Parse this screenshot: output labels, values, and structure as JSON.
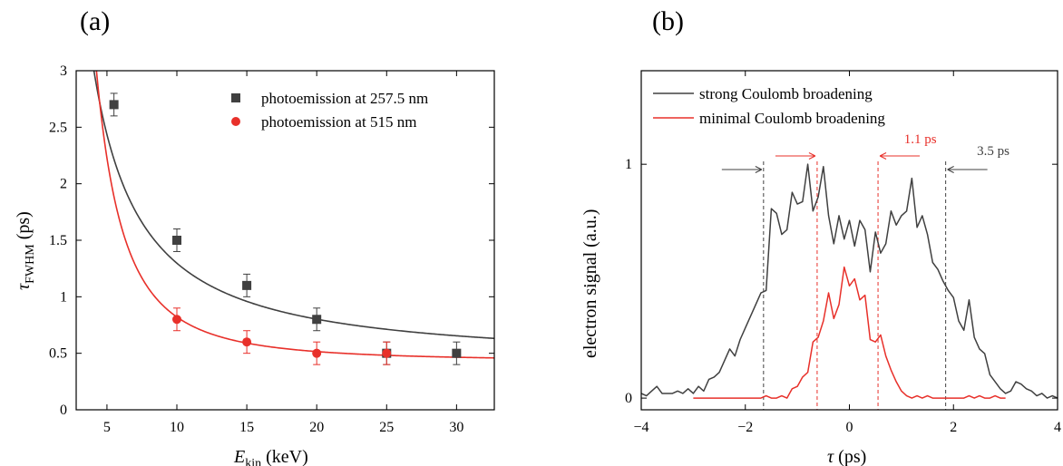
{
  "chart_data": [
    {
      "panel_label": "(a)",
      "type": "scatter",
      "xlabel": "E_kin (keV)",
      "xlabel_main": "E",
      "xlabel_sub": "kin",
      "xlabel_unit": " (keV)",
      "ylabel": "τ_FWHM (ps)",
      "ylabel_main": "τ",
      "ylabel_sub": "FWHM",
      "ylabel_unit": " (ps)",
      "xlim": [
        2.8,
        32.7
      ],
      "ylim": [
        0,
        3
      ],
      "xticks": [
        5,
        10,
        15,
        20,
        25,
        30
      ],
      "yticks": [
        0,
        0.5,
        1,
        1.5,
        2,
        2.5,
        3
      ],
      "grid": false,
      "legend_position": "top-right",
      "series": [
        {
          "name": "photoemission at 257.5 nm",
          "color": "#404040",
          "marker": "square",
          "x": [
            5.5,
            10,
            15,
            20,
            25,
            30
          ],
          "y": [
            2.7,
            1.5,
            1.1,
            0.8,
            0.5,
            0.5
          ],
          "yerr": [
            0.1,
            0.1,
            0.1,
            0.1,
            0.1,
            0.1
          ],
          "fit": {
            "a": 13.9,
            "p": 1.2,
            "c": 0.42
          }
        },
        {
          "name": "photoemission at 515 nm",
          "color": "#e8302a",
          "marker": "circle",
          "x": [
            10,
            15,
            20,
            25
          ],
          "y": [
            0.8,
            0.6,
            0.5,
            0.5
          ],
          "yerr": [
            0.1,
            0.1,
            0.1,
            0.1
          ],
          "fit": {
            "a": 62,
            "p": 2.2,
            "c": 0.43
          }
        }
      ]
    },
    {
      "panel_label": "(b)",
      "type": "line",
      "xlabel": "τ (ps)",
      "xlabel_main": "τ",
      "xlabel_unit": " (ps)",
      "ylabel": "electron signal (a.u.)",
      "xlim": [
        -4,
        4
      ],
      "ylim": [
        -0.05,
        1.4
      ],
      "xticks": [
        -4,
        -2,
        0,
        2,
        4
      ],
      "yticks": [
        0,
        1
      ],
      "grid": false,
      "legend_position": "top-left",
      "series": [
        {
          "name": "strong Coulomb broadening",
          "color": "#404040",
          "x": [
            -4.0,
            -3.9,
            -3.8,
            -3.7,
            -3.6,
            -3.5,
            -3.4,
            -3.3,
            -3.2,
            -3.1,
            -3.0,
            -2.9,
            -2.8,
            -2.7,
            -2.6,
            -2.5,
            -2.4,
            -2.3,
            -2.2,
            -2.1,
            -2.0,
            -1.9,
            -1.8,
            -1.7,
            -1.6,
            -1.5,
            -1.4,
            -1.3,
            -1.2,
            -1.1,
            -1.0,
            -0.9,
            -0.8,
            -0.7,
            -0.6,
            -0.5,
            -0.4,
            -0.3,
            -0.2,
            -0.1,
            0.0,
            0.1,
            0.2,
            0.3,
            0.4,
            0.5,
            0.6,
            0.7,
            0.8,
            0.9,
            1.0,
            1.1,
            1.2,
            1.3,
            1.4,
            1.5,
            1.6,
            1.7,
            1.8,
            1.9,
            2.0,
            2.1,
            2.2,
            2.3,
            2.4,
            2.5,
            2.6,
            2.7,
            2.8,
            2.9,
            3.0,
            3.1,
            3.2,
            3.3,
            3.4,
            3.5,
            3.6,
            3.7,
            3.8,
            3.9,
            4.0
          ],
          "y": [
            0.02,
            0.01,
            0.03,
            0.05,
            0.02,
            0.02,
            0.02,
            0.03,
            0.02,
            0.04,
            0.02,
            0.05,
            0.03,
            0.08,
            0.09,
            0.11,
            0.16,
            0.21,
            0.18,
            0.25,
            0.3,
            0.35,
            0.4,
            0.45,
            0.46,
            0.81,
            0.79,
            0.7,
            0.72,
            0.88,
            0.83,
            0.84,
            1.0,
            0.8,
            0.86,
            0.99,
            0.78,
            0.66,
            0.78,
            0.68,
            0.76,
            0.65,
            0.76,
            0.72,
            0.54,
            0.71,
            0.62,
            0.66,
            0.8,
            0.74,
            0.78,
            0.8,
            0.94,
            0.73,
            0.78,
            0.7,
            0.58,
            0.55,
            0.5,
            0.46,
            0.43,
            0.33,
            0.29,
            0.42,
            0.26,
            0.21,
            0.19,
            0.1,
            0.07,
            0.04,
            0.02,
            0.03,
            0.07,
            0.06,
            0.04,
            0.03,
            0.01,
            0.02,
            0.0,
            0.01,
            0.0
          ]
        },
        {
          "name": "minimal Coulomb broadening",
          "color": "#e8302a",
          "x": [
            -3.0,
            -2.9,
            -2.8,
            -2.7,
            -2.6,
            -2.5,
            -2.4,
            -2.3,
            -2.2,
            -2.1,
            -2.0,
            -1.9,
            -1.8,
            -1.7,
            -1.6,
            -1.5,
            -1.4,
            -1.3,
            -1.2,
            -1.1,
            -1.0,
            -0.9,
            -0.8,
            -0.7,
            -0.6,
            -0.5,
            -0.4,
            -0.3,
            -0.2,
            -0.1,
            0.0,
            0.1,
            0.2,
            0.3,
            0.4,
            0.5,
            0.6,
            0.7,
            0.8,
            0.9,
            1.0,
            1.1,
            1.2,
            1.3,
            1.4,
            1.5,
            1.6,
            1.7,
            1.8,
            1.9,
            2.0,
            2.1,
            2.2,
            2.3,
            2.4,
            2.5,
            2.6,
            2.7,
            2.8,
            2.9,
            3.0
          ],
          "y": [
            0.0,
            0.0,
            0.0,
            0.0,
            0.0,
            0.0,
            0.0,
            0.0,
            0.0,
            0.0,
            0.0,
            0.0,
            0.0,
            0.0,
            0.01,
            0.0,
            0.0,
            0.01,
            0.0,
            0.04,
            0.05,
            0.09,
            0.11,
            0.24,
            0.26,
            0.33,
            0.45,
            0.34,
            0.4,
            0.56,
            0.48,
            0.51,
            0.42,
            0.44,
            0.25,
            0.24,
            0.27,
            0.18,
            0.12,
            0.07,
            0.03,
            0.01,
            0.0,
            0.01,
            0.0,
            0.01,
            0.0,
            0.0,
            0.0,
            0.0,
            0.0,
            0.0,
            0.0,
            0.01,
            0.0,
            0.01,
            0.0,
            0.0,
            0.01,
            0.0,
            0.0
          ]
        }
      ],
      "vlines": [
        {
          "x": -1.65,
          "color": "#404040"
        },
        {
          "x": 1.85,
          "color": "#404040"
        },
        {
          "x": -0.62,
          "color": "#e8302a"
        },
        {
          "x": 0.55,
          "color": "#e8302a"
        }
      ],
      "annotations": [
        {
          "text": "1.1 ps",
          "color": "#e8302a",
          "x": 1.05,
          "y": 1.09
        },
        {
          "text": "3.5 ps",
          "color": "#404040",
          "x": 2.45,
          "y": 1.04
        }
      ]
    }
  ]
}
